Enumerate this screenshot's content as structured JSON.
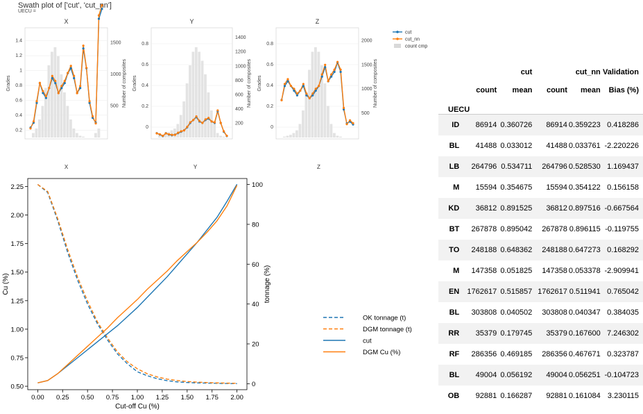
{
  "swath": {
    "title": "Swath plot of ['cut', 'cut_nn']",
    "subtitle": "UECU =",
    "y_label": "Grades",
    "y2_label": "Number of composites",
    "panels": [
      {
        "title": "X",
        "grade_ticks": [
          "0.2",
          "0.4",
          "0.6",
          "0.8",
          "1",
          "1.2",
          "1.4"
        ],
        "count_ticks": [
          "500",
          "1000",
          "1500"
        ]
      },
      {
        "title": "Y",
        "grade_ticks": [
          "0",
          "0.2",
          "0.4",
          "0.6",
          "0.8"
        ],
        "count_ticks": [
          "200",
          "400",
          "600",
          "800",
          "1000",
          "1200",
          "1400"
        ]
      },
      {
        "title": "Z",
        "grade_ticks": [
          "0",
          "0.2",
          "0.4",
          "0.6",
          "0.8"
        ],
        "count_ticks": [
          "500",
          "1000",
          "1500",
          "2000"
        ]
      }
    ],
    "legend": [
      {
        "label": "cut",
        "color": "#1f77b4"
      },
      {
        "label": "cut_nn",
        "color": "#ff7f0e"
      },
      {
        "label": "count cmp",
        "color": "#d9d9d9"
      }
    ],
    "bottom_axis_labels": [
      "X",
      "Y",
      "Z"
    ]
  },
  "chart_data": {
    "type": "line",
    "title": "",
    "xlabel": "Cut-off Cu (%)",
    "ylabel": "Cu (%)",
    "y2label": "tonnage (%)",
    "xlim": [
      -0.1,
      2.1
    ],
    "ylim": [
      0.47,
      2.32
    ],
    "y2lim": [
      -3,
      103
    ],
    "x_ticks": [
      "0.00",
      "0.25",
      "0.50",
      "0.75",
      "1.00",
      "1.25",
      "1.50",
      "1.75",
      "2.00"
    ],
    "y_ticks": [
      "0.50",
      "0.75",
      "1.00",
      "1.25",
      "1.50",
      "1.75",
      "2.00",
      "2.25"
    ],
    "y2_ticks": [
      "0",
      "20",
      "40",
      "60",
      "80",
      "100"
    ],
    "x": [
      0,
      0.1,
      0.2,
      0.3,
      0.4,
      0.5,
      0.6,
      0.7,
      0.8,
      0.9,
      1.0,
      1.1,
      1.2,
      1.3,
      1.4,
      1.5,
      1.6,
      1.7,
      1.8,
      1.9,
      2.0
    ],
    "series": [
      {
        "name": "OK tonnage (t)",
        "axis": "right",
        "style": "dashed",
        "color": "#1f77b4",
        "values": [
          100,
          96,
          82,
          66,
          52,
          40,
          30,
          22,
          15,
          10,
          6,
          4,
          2.5,
          1.5,
          0.9,
          0.6,
          0.4,
          0.3,
          0.2,
          0.1,
          0.05
        ]
      },
      {
        "name": "DGM tonnage (t)",
        "axis": "right",
        "style": "dashed",
        "color": "#ff7f0e",
        "values": [
          100,
          96.5,
          83,
          67.5,
          53.5,
          41.5,
          31,
          23,
          16,
          11,
          7.5,
          5,
          3.4,
          2.3,
          1.6,
          1.1,
          0.8,
          0.6,
          0.4,
          0.3,
          0.2
        ]
      },
      {
        "name": "cut",
        "axis": "left",
        "style": "solid",
        "color": "#1f77b4",
        "values": [
          0.53,
          0.55,
          0.61,
          0.68,
          0.75,
          0.82,
          0.89,
          0.96,
          1.03,
          1.11,
          1.19,
          1.28,
          1.37,
          1.46,
          1.56,
          1.66,
          1.76,
          1.87,
          1.98,
          2.12,
          2.27
        ]
      },
      {
        "name": "DGM Cu (%)",
        "axis": "left",
        "style": "solid",
        "color": "#ff7f0e",
        "values": [
          0.53,
          0.55,
          0.61,
          0.69,
          0.77,
          0.85,
          0.93,
          1.01,
          1.1,
          1.18,
          1.26,
          1.35,
          1.43,
          1.51,
          1.6,
          1.68,
          1.76,
          1.85,
          1.95,
          2.08,
          2.26
        ]
      }
    ],
    "legend_position": "right"
  },
  "table": {
    "group_headers": [
      "cut",
      "cut_nn",
      "Validation"
    ],
    "columns": [
      "count",
      "mean",
      "count",
      "mean",
      "Bias (%)"
    ],
    "index_name": "UECU",
    "rows": [
      {
        "id": "ID",
        "cut_count": "86914",
        "cut_mean": "0.360726",
        "nn_count": "86914",
        "nn_mean": "0.359223",
        "bias": "0.418286"
      },
      {
        "id": "BL",
        "cut_count": "41488",
        "cut_mean": "0.033012",
        "nn_count": "41488",
        "nn_mean": "0.033761",
        "bias": "-2.220226"
      },
      {
        "id": "LB",
        "cut_count": "264796",
        "cut_mean": "0.534711",
        "nn_count": "264796",
        "nn_mean": "0.528530",
        "bias": "1.169437"
      },
      {
        "id": "M",
        "cut_count": "15594",
        "cut_mean": "0.354675",
        "nn_count": "15594",
        "nn_mean": "0.354122",
        "bias": "0.156158"
      },
      {
        "id": "KD",
        "cut_count": "36812",
        "cut_mean": "0.891525",
        "nn_count": "36812",
        "nn_mean": "0.897516",
        "bias": "-0.667564"
      },
      {
        "id": "BT",
        "cut_count": "267878",
        "cut_mean": "0.895042",
        "nn_count": "267878",
        "nn_mean": "0.896115",
        "bias": "-0.119755"
      },
      {
        "id": "TO",
        "cut_count": "248188",
        "cut_mean": "0.648362",
        "nn_count": "248188",
        "nn_mean": "0.647273",
        "bias": "0.168292"
      },
      {
        "id": "M",
        "cut_count": "147358",
        "cut_mean": "0.051825",
        "nn_count": "147358",
        "nn_mean": "0.053378",
        "bias": "-2.909941"
      },
      {
        "id": "EN",
        "cut_count": "1762617",
        "cut_mean": "0.515857",
        "nn_count": "1762617",
        "nn_mean": "0.511941",
        "bias": "0.765042"
      },
      {
        "id": "BL",
        "cut_count": "303808",
        "cut_mean": "0.040502",
        "nn_count": "303808",
        "nn_mean": "0.040347",
        "bias": "0.384035"
      },
      {
        "id": "RR",
        "cut_count": "35379",
        "cut_mean": "0.179745",
        "nn_count": "35379",
        "nn_mean": "0.167600",
        "bias": "7.246302"
      },
      {
        "id": "RF",
        "cut_count": "286356",
        "cut_mean": "0.469185",
        "nn_count": "286356",
        "nn_mean": "0.467671",
        "bias": "0.323787"
      },
      {
        "id": "BL",
        "cut_count": "49004",
        "cut_mean": "0.056192",
        "nn_count": "49004",
        "nn_mean": "0.056251",
        "bias": "-0.104723"
      },
      {
        "id": "OB",
        "cut_count": "92881",
        "cut_mean": "0.166287",
        "nn_count": "92881",
        "nn_mean": "0.161084",
        "bias": "3.230115"
      }
    ]
  }
}
